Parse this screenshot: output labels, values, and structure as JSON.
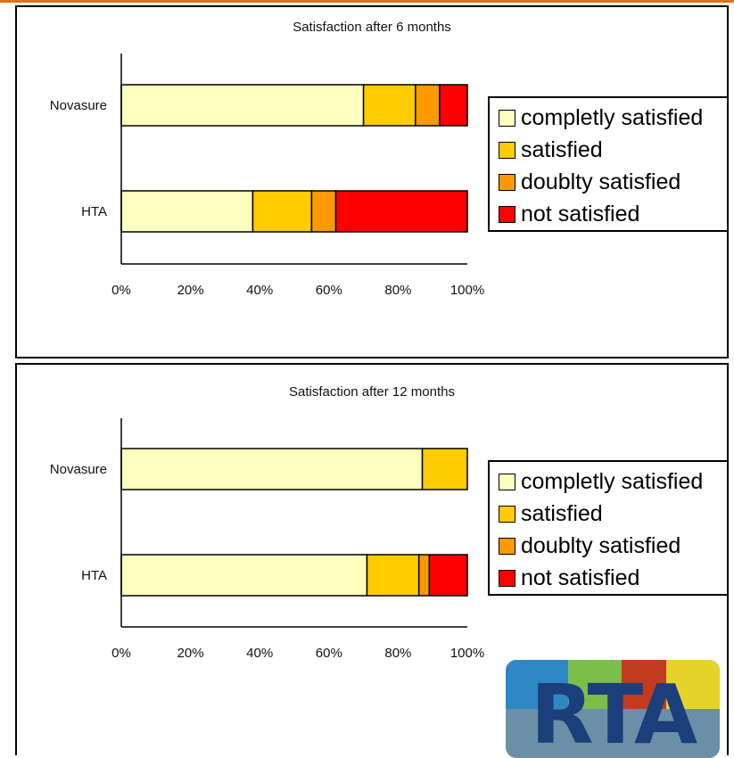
{
  "chart_data": [
    {
      "type": "bar",
      "orientation": "horizontal",
      "stacked": "percent",
      "title": "Satisfaction after 6 months",
      "categories": [
        "Novasure",
        "HTA"
      ],
      "series": [
        {
          "name": "completly satisfied",
          "color": "#ffffc0",
          "values": [
            70,
            38
          ]
        },
        {
          "name": "satisfied",
          "color": "#ffcc00",
          "values": [
            15,
            17
          ]
        },
        {
          "name": "doublty satisfied",
          "color": "#ff9900",
          "values": [
            7,
            7
          ]
        },
        {
          "name": "not satisfied",
          "color": "#ff0000",
          "values": [
            8,
            38
          ]
        }
      ],
      "xlim": [
        0,
        100
      ],
      "xticks": [
        "0%",
        "20%",
        "40%",
        "60%",
        "80%",
        "100%"
      ],
      "legend_position": "right",
      "grid": false
    },
    {
      "type": "bar",
      "orientation": "horizontal",
      "stacked": "percent",
      "title": "Satisfaction after 12 months",
      "categories": [
        "Novasure",
        "HTA"
      ],
      "series": [
        {
          "name": "completly satisfied",
          "color": "#ffffc0",
          "values": [
            87,
            71
          ]
        },
        {
          "name": "satisfied",
          "color": "#ffcc00",
          "values": [
            13,
            15
          ]
        },
        {
          "name": "doublty satisfied",
          "color": "#ff9900",
          "values": [
            0,
            3
          ]
        },
        {
          "name": "not satisfied",
          "color": "#ff0000",
          "values": [
            0,
            11
          ]
        }
      ],
      "xlim": [
        0,
        100
      ],
      "xticks": [
        "0%",
        "20%",
        "40%",
        "60%",
        "80%",
        "100%"
      ],
      "legend_position": "right",
      "grid": false
    }
  ],
  "logo": {
    "text": "RTA",
    "colors": [
      "#2f86c4",
      "#7bbf4a",
      "#c23b1e",
      "#e6d32a",
      "#1a3f7a"
    ]
  },
  "accent": "#e0701c"
}
